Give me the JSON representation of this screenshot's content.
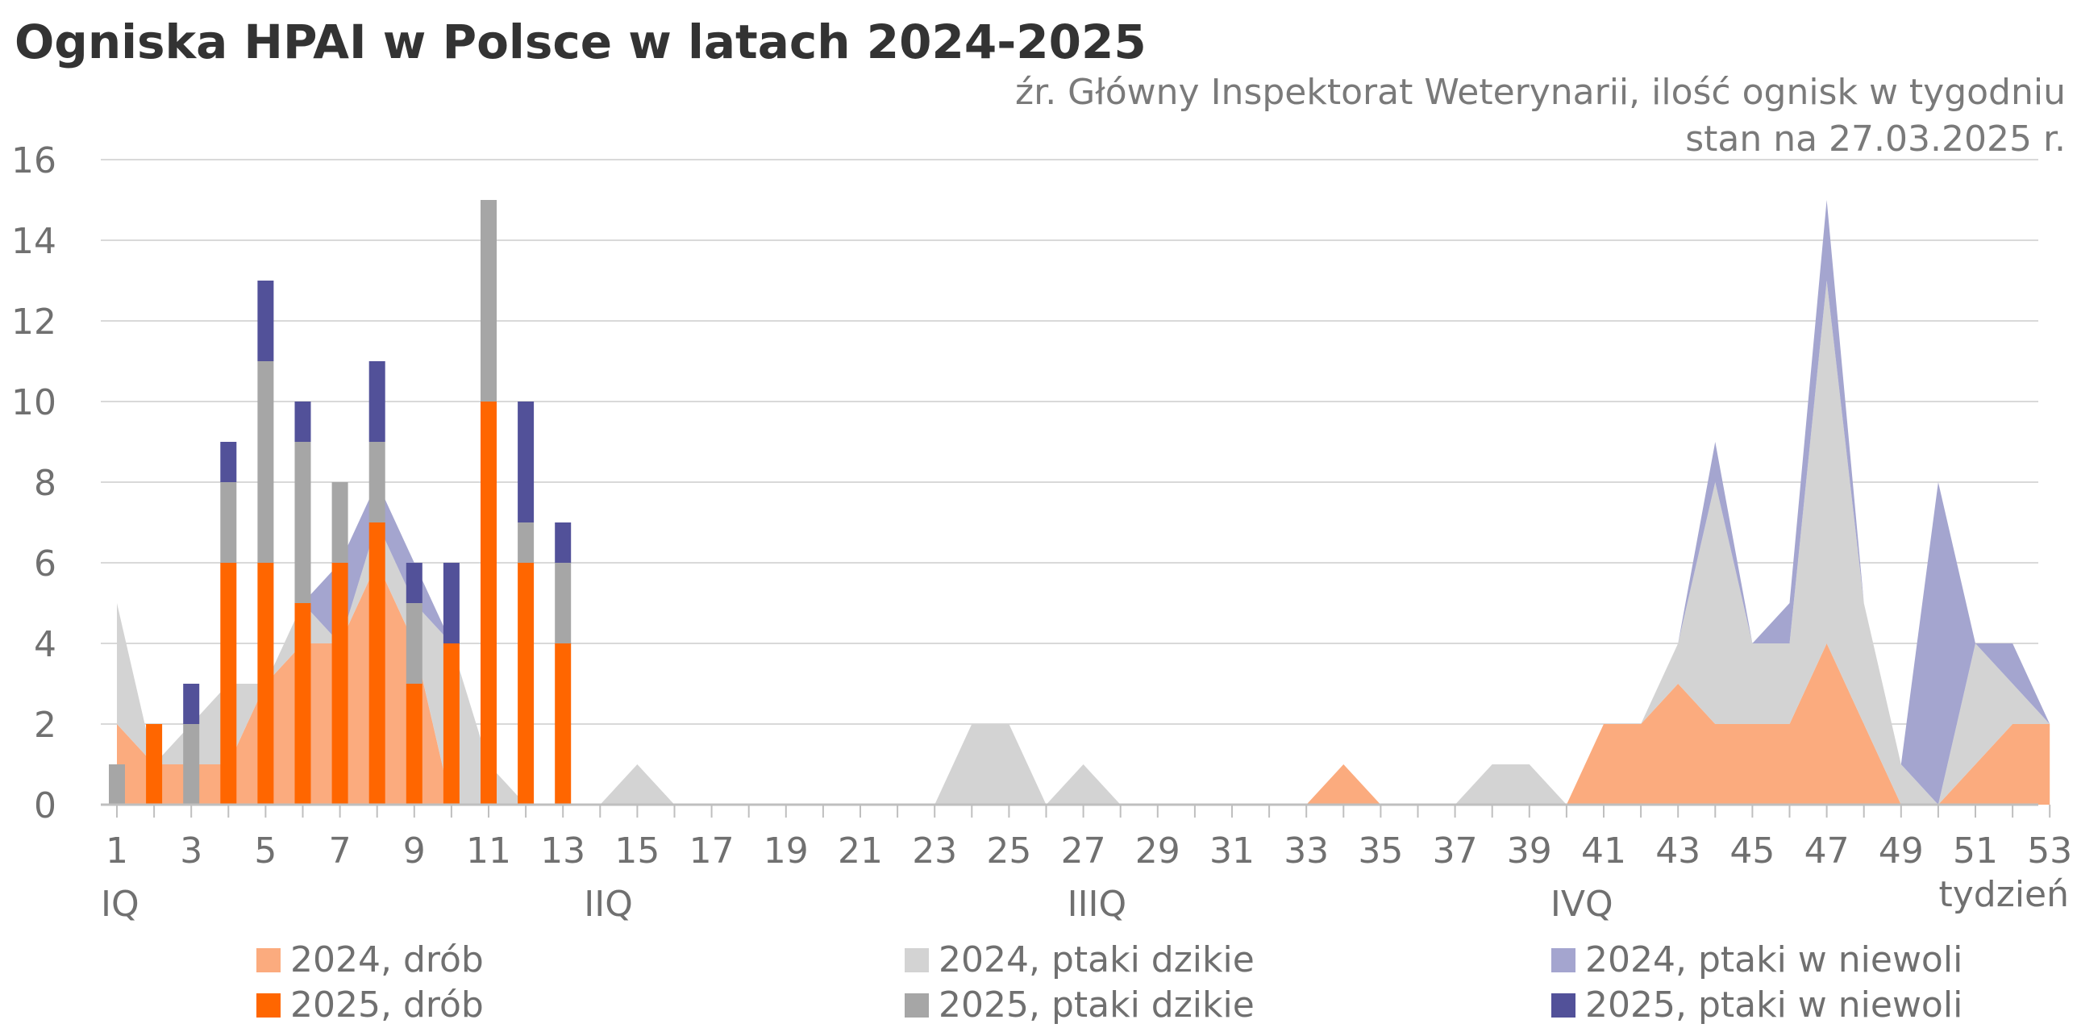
{
  "title": "Ogniska HPAI w Polsce w latach 2024-2025",
  "subtitle_lines": [
    "źr. Główny Inspektorat Weterynarii, ilość ognisk w tygodniu",
    "stan na 27.03.2025 r."
  ],
  "chart_data": {
    "type": "bar",
    "weeks": [
      1,
      2,
      3,
      4,
      5,
      6,
      7,
      8,
      9,
      10,
      11,
      12,
      13,
      14,
      15,
      16,
      17,
      18,
      19,
      20,
      21,
      22,
      23,
      24,
      25,
      26,
      27,
      28,
      29,
      30,
      31,
      32,
      33,
      34,
      35,
      36,
      37,
      38,
      39,
      40,
      41,
      42,
      43,
      44,
      45,
      46,
      47,
      48,
      49,
      50,
      51,
      52,
      53
    ],
    "x_tick_labels": [
      "1",
      "3",
      "5",
      "7",
      "9",
      "11",
      "13",
      "15",
      "17",
      "19",
      "21",
      "23",
      "25",
      "27",
      "29",
      "31",
      "33",
      "35",
      "37",
      "39",
      "41",
      "43",
      "45",
      "47",
      "49",
      "51",
      "53"
    ],
    "x_axis_unit": "tydzień",
    "quarters": [
      {
        "label": "IQ",
        "week": 1
      },
      {
        "label": "IIQ",
        "week": 14
      },
      {
        "label": "IIIQ",
        "week": 27
      },
      {
        "label": "IVQ",
        "week": 40
      }
    ],
    "ylim": [
      0,
      16
    ],
    "y_ticks": [
      0,
      2,
      4,
      6,
      8,
      10,
      12,
      14,
      16
    ],
    "grid": true,
    "area_series_2024": [
      {
        "name": "2024, drób",
        "color": "#fbab7e",
        "values": [
          2,
          1,
          1,
          1,
          3,
          4,
          4,
          6,
          4,
          0,
          0,
          0,
          0,
          0,
          0,
          0,
          0,
          0,
          0,
          0,
          0,
          0,
          0,
          0,
          0,
          0,
          0,
          0,
          0,
          0,
          0,
          0,
          0,
          1,
          0,
          0,
          0,
          0,
          0,
          0,
          2,
          2,
          3,
          2,
          2,
          2,
          4,
          2,
          0,
          0,
          1,
          2,
          2
        ]
      },
      {
        "name": "2024, ptaki dzikie",
        "color": "#d3d3d3",
        "values": [
          3,
          0,
          1,
          2,
          0,
          1,
          0,
          1,
          1,
          4,
          1,
          0,
          0,
          0,
          1,
          0,
          0,
          0,
          0,
          0,
          0,
          0,
          0,
          2,
          2,
          0,
          1,
          0,
          0,
          0,
          0,
          0,
          0,
          0,
          0,
          0,
          0,
          1,
          1,
          0,
          0,
          0,
          1,
          6,
          2,
          2,
          9,
          3,
          1,
          0,
          3,
          1,
          0
        ]
      },
      {
        "name": "2024, ptaki w niewoli",
        "color": "#a4a5cf",
        "values": [
          0,
          0,
          0,
          0,
          0,
          0,
          2,
          1,
          1,
          0,
          0,
          0,
          0,
          0,
          0,
          0,
          0,
          0,
          0,
          0,
          0,
          0,
          0,
          0,
          0,
          0,
          0,
          0,
          0,
          0,
          0,
          0,
          0,
          0,
          0,
          0,
          0,
          0,
          0,
          0,
          0,
          0,
          0,
          1,
          0,
          1,
          2,
          0,
          0,
          8,
          0,
          1,
          0
        ]
      }
    ],
    "bar_series_2025": [
      {
        "name": "2025, drób",
        "color": "#ff6600",
        "values": [
          0,
          2,
          0,
          6,
          6,
          5,
          6,
          7,
          3,
          4,
          10,
          6,
          4
        ]
      },
      {
        "name": "2025, ptaki dzikie",
        "color": "#a6a6a6",
        "values": [
          1,
          0,
          2,
          2,
          5,
          4,
          2,
          2,
          2,
          0,
          5,
          1,
          2
        ]
      },
      {
        "name": "2025, ptaki w niewoli",
        "color": "#525199",
        "values": [
          0,
          0,
          1,
          1,
          2,
          1,
          0,
          2,
          1,
          2,
          0,
          3,
          1
        ]
      }
    ]
  },
  "legend": [
    {
      "label": "2024, drób",
      "color": "#fbab7e"
    },
    {
      "label": "2024, ptaki dzikie",
      "color": "#d3d3d3"
    },
    {
      "label": "2024, ptaki w niewoli",
      "color": "#a4a5cf"
    },
    {
      "label": "2025, drób",
      "color": "#ff6600"
    },
    {
      "label": "2025, ptaki dzikie",
      "color": "#a6a6a6"
    },
    {
      "label": "2025, ptaki w niewoli",
      "color": "#525199"
    }
  ]
}
